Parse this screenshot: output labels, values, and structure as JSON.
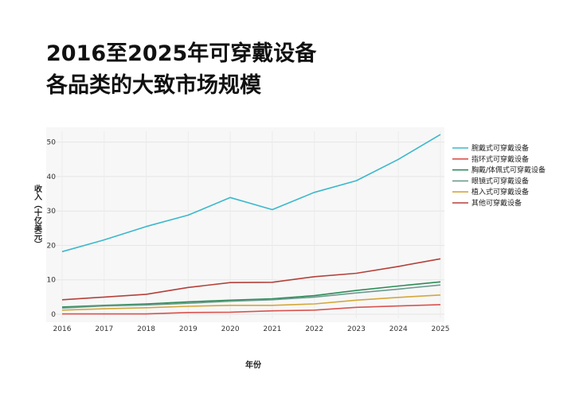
{
  "title_line1": "2016至2025年可穿戴设备",
  "title_line2": "各品类的大致市场规模",
  "chart_data": {
    "type": "line",
    "title": "2016至2025年可穿戴设备各品类的大致市场规模",
    "xlabel": "年份",
    "ylabel": "收入（十亿美元）",
    "x": [
      2016,
      2017,
      2018,
      2019,
      2020,
      2021,
      2022,
      2023,
      2024,
      2025
    ],
    "xlim": [
      2016,
      2025
    ],
    "ylim": [
      0,
      52
    ],
    "yticks": [
      0,
      10,
      20,
      30,
      40,
      50
    ],
    "grid": true,
    "legend_position": "right",
    "series": [
      {
        "name": "腕戴式可穿戴设备",
        "color": "#3bb8cc",
        "values": [
          18.2,
          21.6,
          25.5,
          28.8,
          33.9,
          30.4,
          35.4,
          38.8,
          45.0,
          52.2
        ]
      },
      {
        "name": "指环式可穿戴设备",
        "color": "#d9534f",
        "values": [
          0.1,
          0.1,
          0.1,
          0.5,
          0.6,
          1.0,
          1.2,
          2.0,
          2.4,
          2.8
        ]
      },
      {
        "name": "胸戴/体佩式可穿戴设备",
        "color": "#2e8b57",
        "values": [
          2.1,
          2.6,
          3.0,
          3.6,
          4.1,
          4.5,
          5.4,
          6.9,
          8.2,
          9.4
        ]
      },
      {
        "name": "眼镜式可穿戴设备",
        "color": "#6b9b8e",
        "values": [
          1.8,
          2.4,
          2.7,
          3.2,
          3.8,
          4.2,
          5.0,
          6.2,
          7.3,
          8.5
        ]
      },
      {
        "name": "植入式可穿戴设备",
        "color": "#d4a73a",
        "values": [
          1.2,
          1.6,
          1.9,
          2.3,
          2.6,
          2.6,
          3.0,
          4.1,
          4.9,
          5.6
        ]
      },
      {
        "name": "其他可穿戴设备",
        "color": "#b5403a",
        "values": [
          4.2,
          5.0,
          5.8,
          7.8,
          9.2,
          9.3,
          10.9,
          11.9,
          13.9,
          16.1
        ]
      }
    ]
  }
}
